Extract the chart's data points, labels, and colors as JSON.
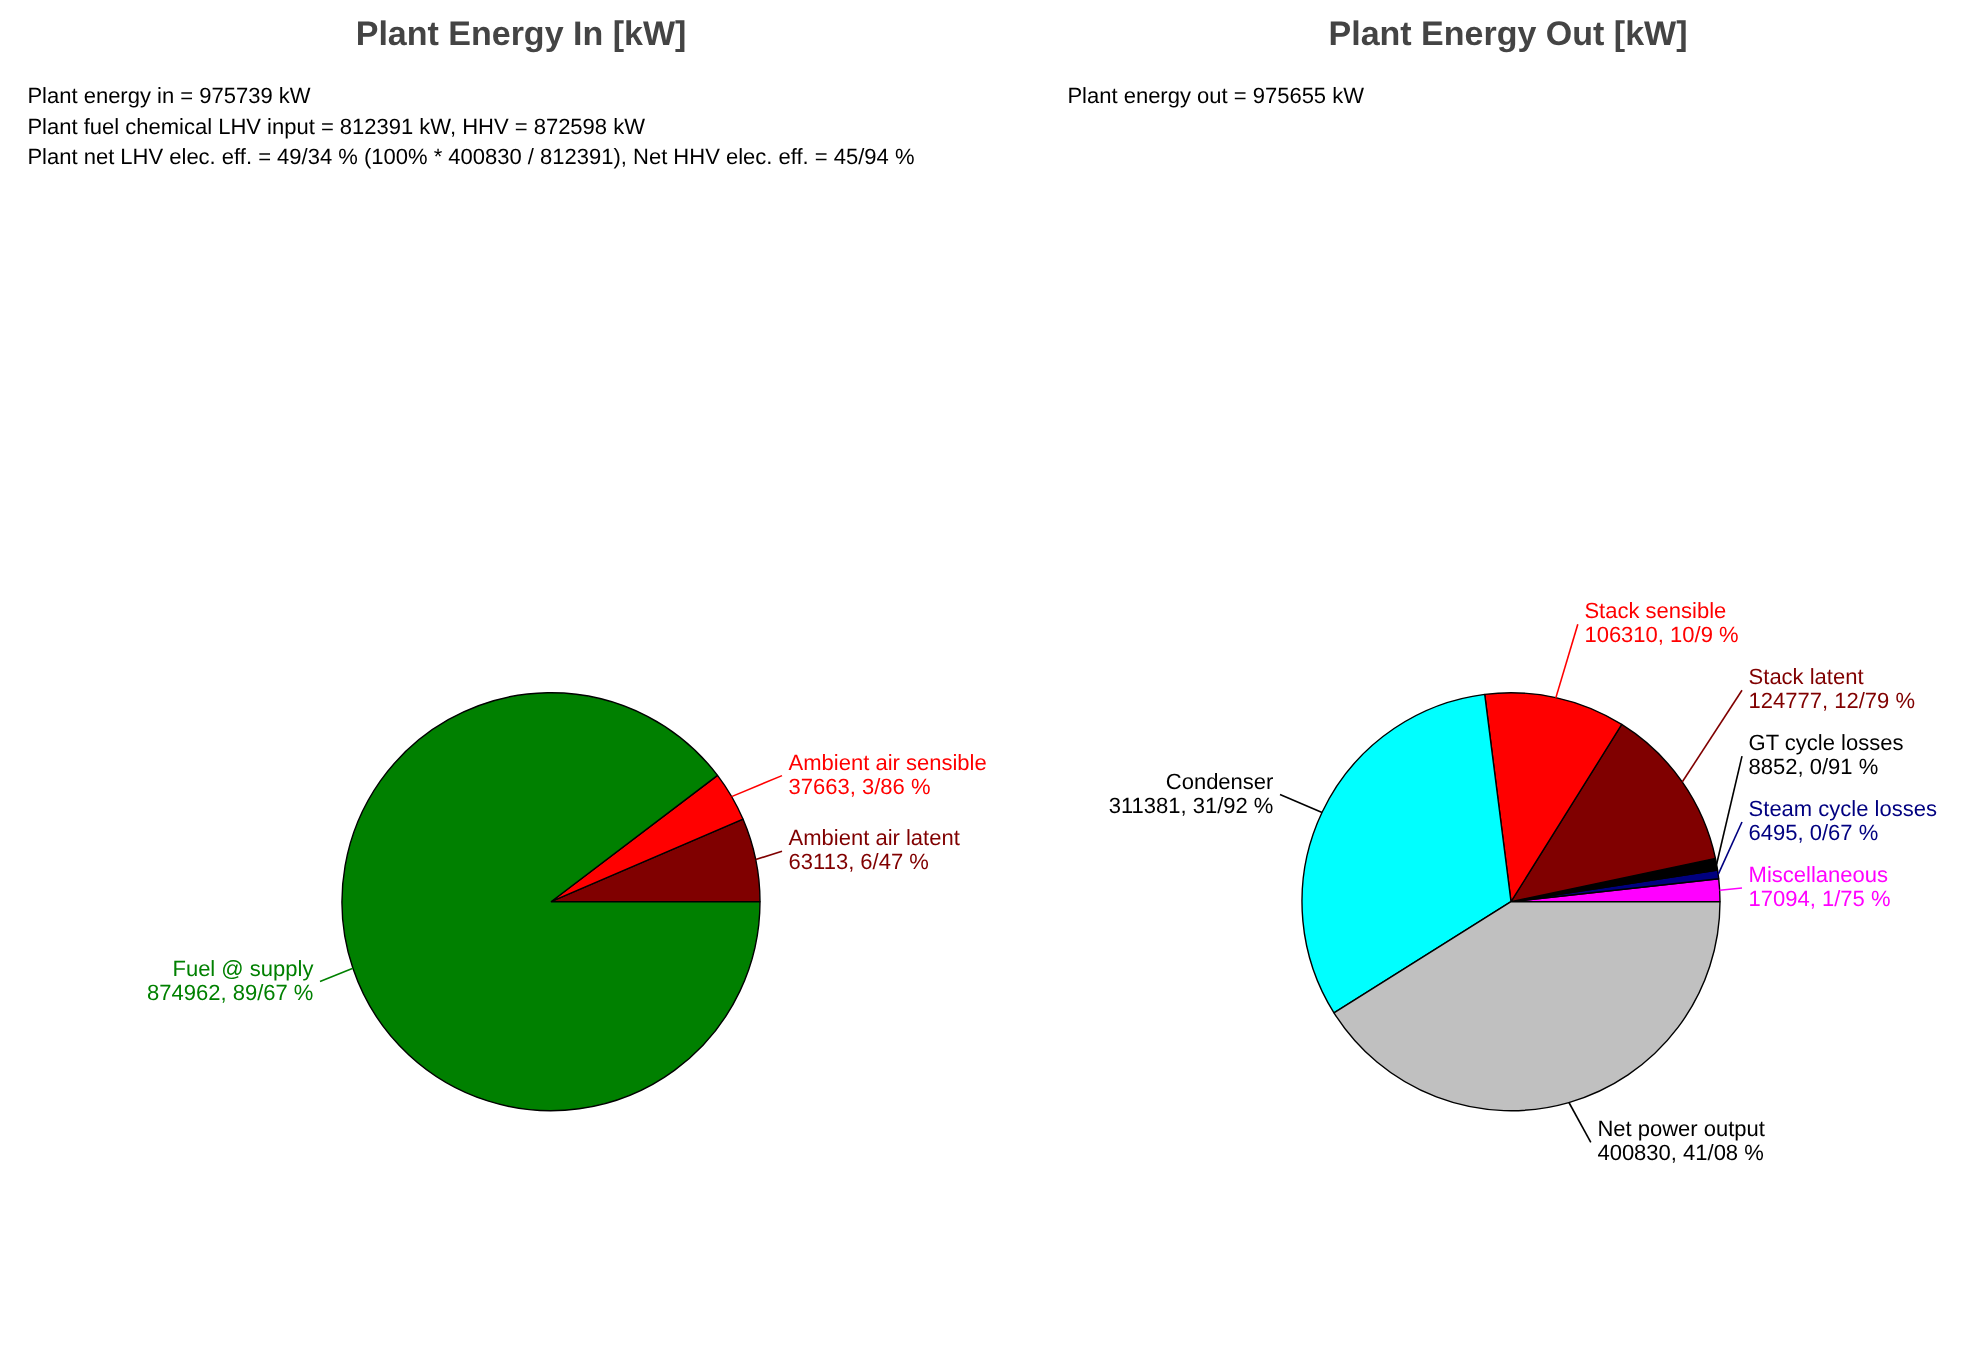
{
  "chart_data": [
    {
      "type": "pie",
      "title": "Plant Energy In [kW]",
      "annotations": [
        "Plant energy in = 975739 kW",
        "Plant fuel chemical LHV input = 812391 kW, HHV = 872598 kW",
        "Plant net LHV elec. eff. = 49/34 % (100% * 400830 / 812391),  Net HHV elec. eff. = 45/94 %"
      ],
      "categories": [
        "Ambient air latent",
        "Ambient air sensible",
        "Fuel @ supply"
      ],
      "values": [
        63113,
        37663,
        874962
      ],
      "value_labels": [
        "63113, 6/47 %",
        "37663, 3/86 %",
        "874962, 89/67 %"
      ],
      "colors": [
        "#800000",
        "#ff0000",
        "#008000"
      ]
    },
    {
      "type": "pie",
      "title": "Plant Energy Out [kW]",
      "annotations": [
        "Plant energy out = 975655 kW"
      ],
      "categories": [
        "Miscellaneous",
        "Steam cycle losses",
        "GT cycle losses",
        "Stack latent",
        "Stack sensible",
        "Condenser",
        "Net power output"
      ],
      "values": [
        17094,
        6495,
        8852,
        124777,
        106310,
        311381,
        400830
      ],
      "value_labels": [
        "17094, 1/75 %",
        "6495, 0/67 %",
        "8852, 0/91 %",
        "124777, 12/79 %",
        "106310, 10/9 %",
        "311381, 31/92 %",
        "400830, 41/08 %"
      ],
      "colors": [
        "#ff00ff",
        "#000080",
        "#000000",
        "#800000",
        "#ff0000",
        "#00ffff",
        "#c0c0c0"
      ]
    }
  ]
}
